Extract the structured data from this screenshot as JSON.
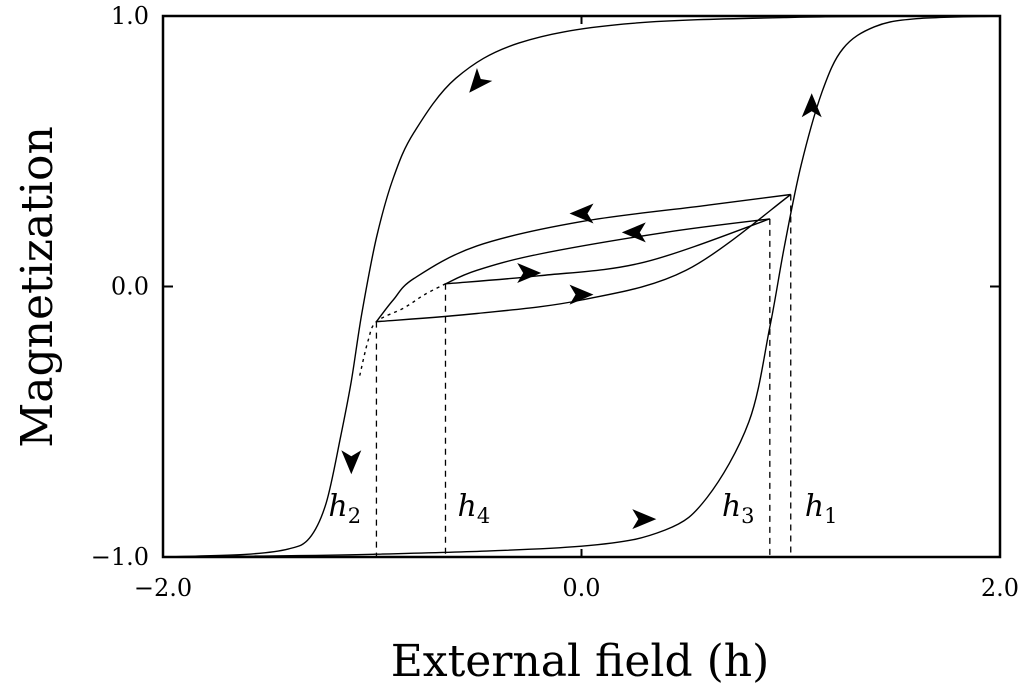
{
  "chart_data": {
    "type": "line",
    "title": "",
    "xlabel": "External field (h)",
    "ylabel": "Magnetization",
    "xlim": [
      -2.0,
      2.0
    ],
    "ylim": [
      -1.0,
      1.0
    ],
    "x_ticks": [
      {
        "value": -2.0,
        "label": "−2.0"
      },
      {
        "value": 0.0,
        "label": "0.0"
      },
      {
        "value": 2.0,
        "label": "2.0"
      }
    ],
    "y_ticks": [
      {
        "value": -1.0,
        "label": "−1.0"
      },
      {
        "value": 0.0,
        "label": "0.0"
      },
      {
        "value": 1.0,
        "label": "1.0"
      }
    ],
    "grid": false,
    "series": [
      {
        "style": "solid",
        "points": [
          [
            -2.0,
            -1.0
          ],
          [
            -1.6,
            -0.99
          ],
          [
            -1.4,
            -0.97
          ],
          [
            -1.3,
            -0.93
          ],
          [
            -1.22,
            -0.8
          ],
          [
            -1.15,
            -0.55
          ],
          [
            -1.1,
            -0.35
          ],
          [
            -1.05,
            -0.1
          ],
          [
            -0.98,
            0.18
          ],
          [
            -0.9,
            0.4
          ],
          [
            -0.8,
            0.57
          ],
          [
            -0.6,
            0.77
          ],
          [
            -0.3,
            0.9
          ],
          [
            0.2,
            0.97
          ],
          [
            1.0,
            0.995
          ],
          [
            2.0,
            1.0
          ]
        ]
      },
      {
        "style": "solid",
        "points": [
          [
            -2.0,
            -1.0
          ],
          [
            -1.0,
            -0.99
          ],
          [
            0.0,
            -0.96
          ],
          [
            0.4,
            -0.9
          ],
          [
            0.6,
            -0.78
          ],
          [
            0.8,
            -0.5
          ],
          [
            0.9,
            -0.15
          ],
          [
            0.97,
            0.15
          ],
          [
            1.05,
            0.45
          ],
          [
            1.15,
            0.72
          ],
          [
            1.25,
            0.88
          ],
          [
            1.4,
            0.96
          ],
          [
            1.6,
            0.99
          ],
          [
            2.0,
            1.0
          ]
        ]
      },
      {
        "style": "solid",
        "points": [
          [
            1.0,
            0.34
          ],
          [
            0.6,
            0.3
          ],
          [
            0.0,
            0.24
          ],
          [
            -0.5,
            0.15
          ],
          [
            -0.8,
            0.03
          ],
          [
            -0.9,
            -0.05
          ],
          [
            -0.98,
            -0.13
          ]
        ]
      },
      {
        "style": "solid",
        "points": [
          [
            -0.98,
            -0.13
          ],
          [
            -0.5,
            -0.1
          ],
          [
            0.0,
            -0.05
          ],
          [
            0.5,
            0.06
          ],
          [
            1.0,
            0.34
          ]
        ]
      },
      {
        "style": "solid",
        "points": [
          [
            0.9,
            0.25
          ],
          [
            0.4,
            0.2
          ],
          [
            -0.2,
            0.12
          ],
          [
            -0.5,
            0.06
          ],
          [
            -0.65,
            0.01
          ]
        ]
      },
      {
        "style": "solid",
        "points": [
          [
            -0.65,
            0.01
          ],
          [
            -0.2,
            0.04
          ],
          [
            0.3,
            0.09
          ],
          [
            0.9,
            0.25
          ]
        ]
      },
      {
        "style": "dotted",
        "points": [
          [
            -0.65,
            0.01
          ],
          [
            -0.75,
            -0.03
          ],
          [
            -0.85,
            -0.08
          ],
          [
            -0.98,
            -0.13
          ],
          [
            -1.02,
            -0.2
          ],
          [
            -1.06,
            -0.33
          ]
        ]
      }
    ],
    "markers": [
      {
        "label": "h",
        "subscript": "1",
        "x": 1.0,
        "y_top": 0.34
      },
      {
        "label": "h",
        "subscript": "2",
        "x": -0.98,
        "y_top": -0.13
      },
      {
        "label": "h",
        "subscript": "3",
        "x": 0.9,
        "y_top": 0.25
      },
      {
        "label": "h",
        "subscript": "4",
        "x": -0.65,
        "y_top": 0.01
      }
    ],
    "arrows": [
      {
        "x": -0.5,
        "y": 0.75,
        "direction": "down-left"
      },
      {
        "x": -1.1,
        "y": -0.65,
        "direction": "down"
      },
      {
        "x": 0.3,
        "y": -0.86,
        "direction": "right"
      },
      {
        "x": 1.1,
        "y": 0.67,
        "direction": "up"
      },
      {
        "x": 0.0,
        "y": 0.27,
        "direction": "left"
      },
      {
        "x": 0.25,
        "y": 0.2,
        "direction": "left"
      },
      {
        "x": -0.25,
        "y": 0.05,
        "direction": "right"
      },
      {
        "x": 0.0,
        "y": -0.03,
        "direction": "right"
      }
    ]
  }
}
